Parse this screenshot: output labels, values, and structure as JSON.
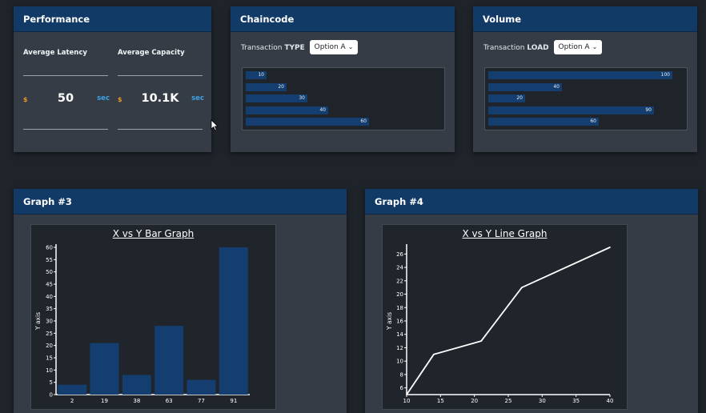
{
  "performance": {
    "title": "Performance",
    "latency": {
      "label": "Average Latency",
      "prefix": "$",
      "value": "50",
      "unit": "sec"
    },
    "capacity": {
      "label": "Average Capacity",
      "prefix": "$",
      "value": "10.1K",
      "unit": "sec"
    }
  },
  "chaincode": {
    "title": "Chaincode",
    "selector_label_plain": "Transaction",
    "selector_label_bold": "TYPE",
    "selected_option": "Option A",
    "bars": [
      {
        "value": 10,
        "label": "10"
      },
      {
        "value": 20,
        "label": "20"
      },
      {
        "value": 30,
        "label": "30"
      },
      {
        "value": 40,
        "label": "40"
      },
      {
        "value": 60,
        "label": "60"
      }
    ]
  },
  "volume": {
    "title": "Volume",
    "selector_label_plain": "Transaction",
    "selector_label_bold": "LOAD",
    "selected_option": "Option A",
    "bars": [
      {
        "value": 100,
        "label": "100"
      },
      {
        "value": 40,
        "label": "40"
      },
      {
        "value": 20,
        "label": "20"
      },
      {
        "value": 90,
        "label": "90"
      },
      {
        "value": 60,
        "label": "60"
      }
    ]
  },
  "graph3": {
    "header": "Graph #3"
  },
  "graph4": {
    "header": "Graph #4"
  },
  "colors": {
    "header": "#123a66",
    "bar": "#133e6f",
    "accent_orange": "#e79b24",
    "accent_blue": "#3fa2e5"
  },
  "chart_data": [
    {
      "type": "bar",
      "title": "X vs Y Bar Graph",
      "xlabel": "",
      "ylabel": "Y axis",
      "categories": [
        "2",
        "19",
        "38",
        "63",
        "77",
        "91"
      ],
      "values": [
        4,
        21,
        8,
        28,
        6,
        60
      ],
      "ylim": [
        0,
        60
      ],
      "yticks": [
        0,
        5,
        10,
        15,
        20,
        25,
        30,
        35,
        40,
        45,
        50,
        55,
        60
      ]
    },
    {
      "type": "line",
      "title": "X vs Y Line Graph",
      "xlabel": "",
      "ylabel": "Y axis",
      "x": [
        10,
        14,
        21,
        27,
        40
      ],
      "y": [
        5,
        11,
        13,
        21,
        27
      ],
      "xlim": [
        10,
        40
      ],
      "ylim": [
        5,
        27
      ],
      "xticks": [
        10,
        15,
        20,
        25,
        30,
        35,
        40
      ],
      "yticks": [
        6,
        8,
        10,
        12,
        14,
        16,
        18,
        20,
        22,
        24,
        26
      ]
    }
  ]
}
